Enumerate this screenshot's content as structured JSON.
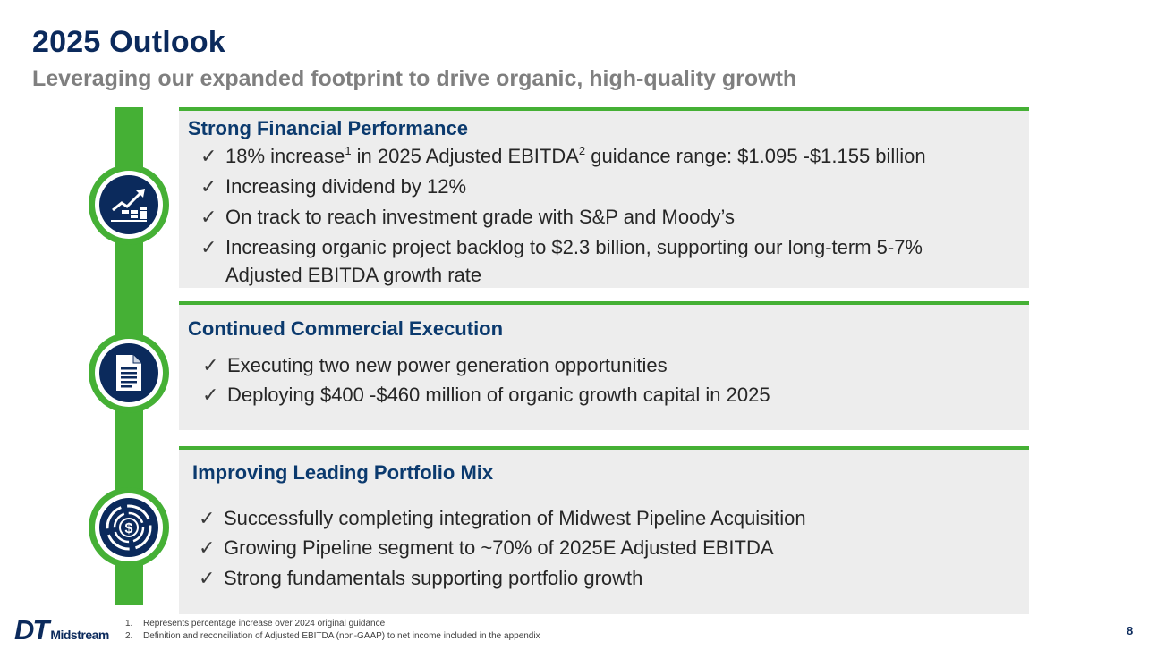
{
  "header": {
    "title": "2025 Outlook",
    "subtitle": "Leveraging our expanded footprint to drive organic, high-quality growth"
  },
  "icons": [
    "growth-chart-icon",
    "document-icon",
    "dollar-portfolio-icon"
  ],
  "colors": {
    "accent_green": "#45b035",
    "navy": "#0b2a5c",
    "panel_bg": "#ededed"
  },
  "sections": [
    {
      "title": "Strong Financial Performance",
      "bullets": [
        {
          "pre": "18% increase",
          "sup1": "1",
          "mid": " in 2025 Adjusted EBITDA",
          "sup2": "2",
          "post": " guidance range: $1.095 -$1.155 billion"
        },
        {
          "text": "Increasing dividend by 12%"
        },
        {
          "text": "On track to reach investment grade with S&P and Moody’s"
        },
        {
          "line1": "Increasing organic project backlog to $2.3 billion, supporting our long-term 5-7%",
          "line2": "Adjusted EBITDA growth rate"
        }
      ]
    },
    {
      "title": "Continued Commercial Execution",
      "bullets": [
        {
          "text": "Executing two new power generation opportunities"
        },
        {
          "text": "Deploying $400 -$460 million of organic growth capital in 2025"
        }
      ]
    },
    {
      "title": "Improving Leading Portfolio Mix",
      "bullets": [
        {
          "text": "Successfully completing integration of Midwest Pipeline Acquisition"
        },
        {
          "text": "Growing Pipeline segment to ~70% of 2025E Adjusted EBITDA"
        },
        {
          "text": "Strong fundamentals supporting portfolio growth"
        }
      ]
    }
  ],
  "check_glyph": "✓",
  "footer": {
    "logo_mark": "DT",
    "logo_text": "Midstream",
    "footnotes": [
      {
        "num": "1.",
        "text": "Represents percentage increase over 2024 original guidance"
      },
      {
        "num": "2.",
        "text": "Definition and reconciliation of Adjusted EBITDA (non-GAAP) to net income included in the appendix"
      }
    ],
    "page_number": "8"
  }
}
